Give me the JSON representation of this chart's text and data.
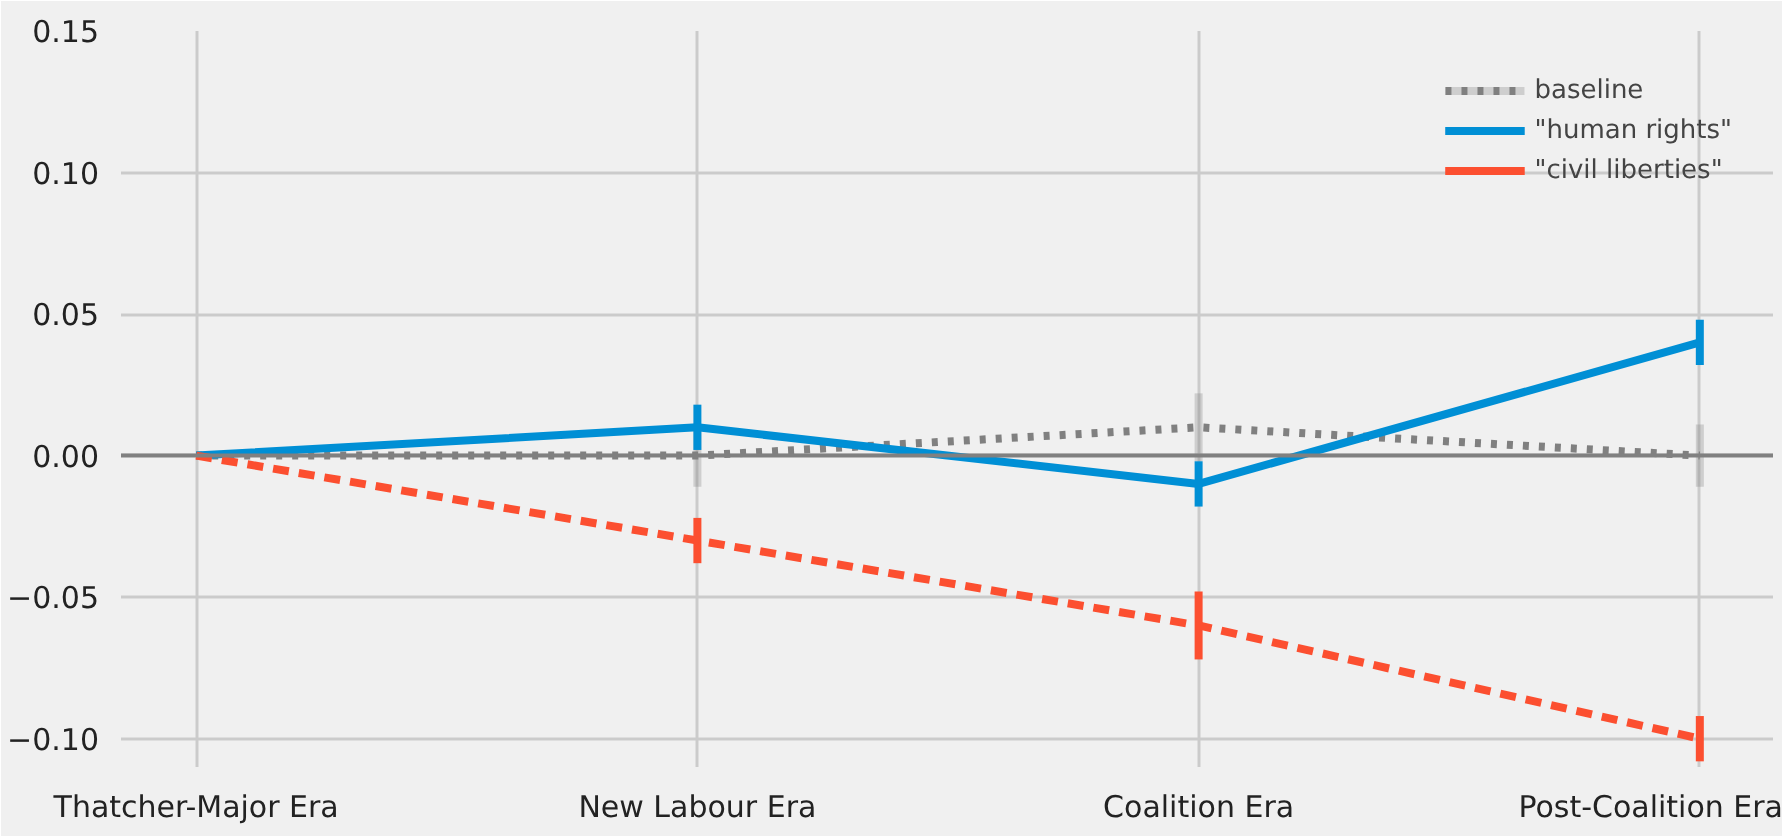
{
  "chart_data": {
    "type": "line",
    "categories": [
      "Thatcher-Major Era",
      "New Labour Era",
      "Coalition Era",
      "Post-Coalition Era"
    ],
    "series": [
      {
        "name": "baseline",
        "color": "#808080",
        "values": [
          0,
          0,
          0.01,
          0
        ],
        "errors": [
          null,
          0.011,
          0.012,
          0.011
        ],
        "line_style": "dotted"
      },
      {
        "name": "\"human rights\"",
        "color": "#008fd5",
        "values": [
          0,
          0.01,
          -0.01,
          0.04
        ],
        "errors": [
          null,
          0.008,
          0.008,
          0.008
        ],
        "line_style": "solid"
      },
      {
        "name": "\"civil liberties\"",
        "color": "#fc4f30",
        "values": [
          0,
          -0.03,
          -0.06,
          -0.1
        ],
        "errors": [
          null,
          0.008,
          0.012,
          0.008
        ],
        "line_style": "dashed"
      }
    ],
    "ylim": [
      -0.11,
      0.15
    ],
    "yticks": [
      {
        "value": -0.1,
        "label": "−0.10"
      },
      {
        "value": -0.05,
        "label": "−0.05"
      },
      {
        "value": 0,
        "label": "0.00"
      },
      {
        "value": 0.05,
        "label": "0.05"
      },
      {
        "value": 0.1,
        "label": "0.10"
      },
      {
        "value": 0.15,
        "label": "0.15"
      }
    ],
    "ref_lines": [
      {
        "axis": "y",
        "value": 0,
        "color": "#808080"
      }
    ],
    "grid": true,
    "legend": "top right"
  }
}
